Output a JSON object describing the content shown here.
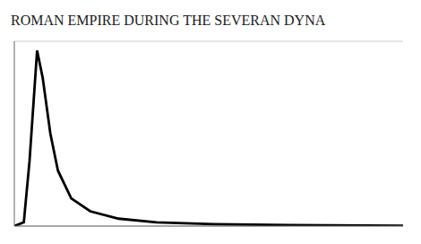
{
  "chart_data": {
    "type": "line",
    "title": "ROMAN EMPIRE DURING THE SEVERAN DYNA",
    "x": [
      -0.5,
      0,
      0.3,
      0.7,
      1.0,
      1.4,
      1.8,
      2.5,
      3.5,
      5.0,
      7.0,
      10.0,
      14.0,
      20.0
    ],
    "values": [
      0,
      0.2,
      3.5,
      9.5,
      8.0,
      5.0,
      3.0,
      1.5,
      0.8,
      0.4,
      0.2,
      0.1,
      0.05,
      0.02
    ],
    "color": "#000000",
    "xlim": [
      -0.5,
      20
    ],
    "ylim": [
      0,
      10
    ],
    "yticks": [
      0,
      1,
      2,
      3,
      4,
      5,
      6,
      7,
      8,
      9,
      10
    ],
    "grid": true,
    "tick_labels": false
  }
}
